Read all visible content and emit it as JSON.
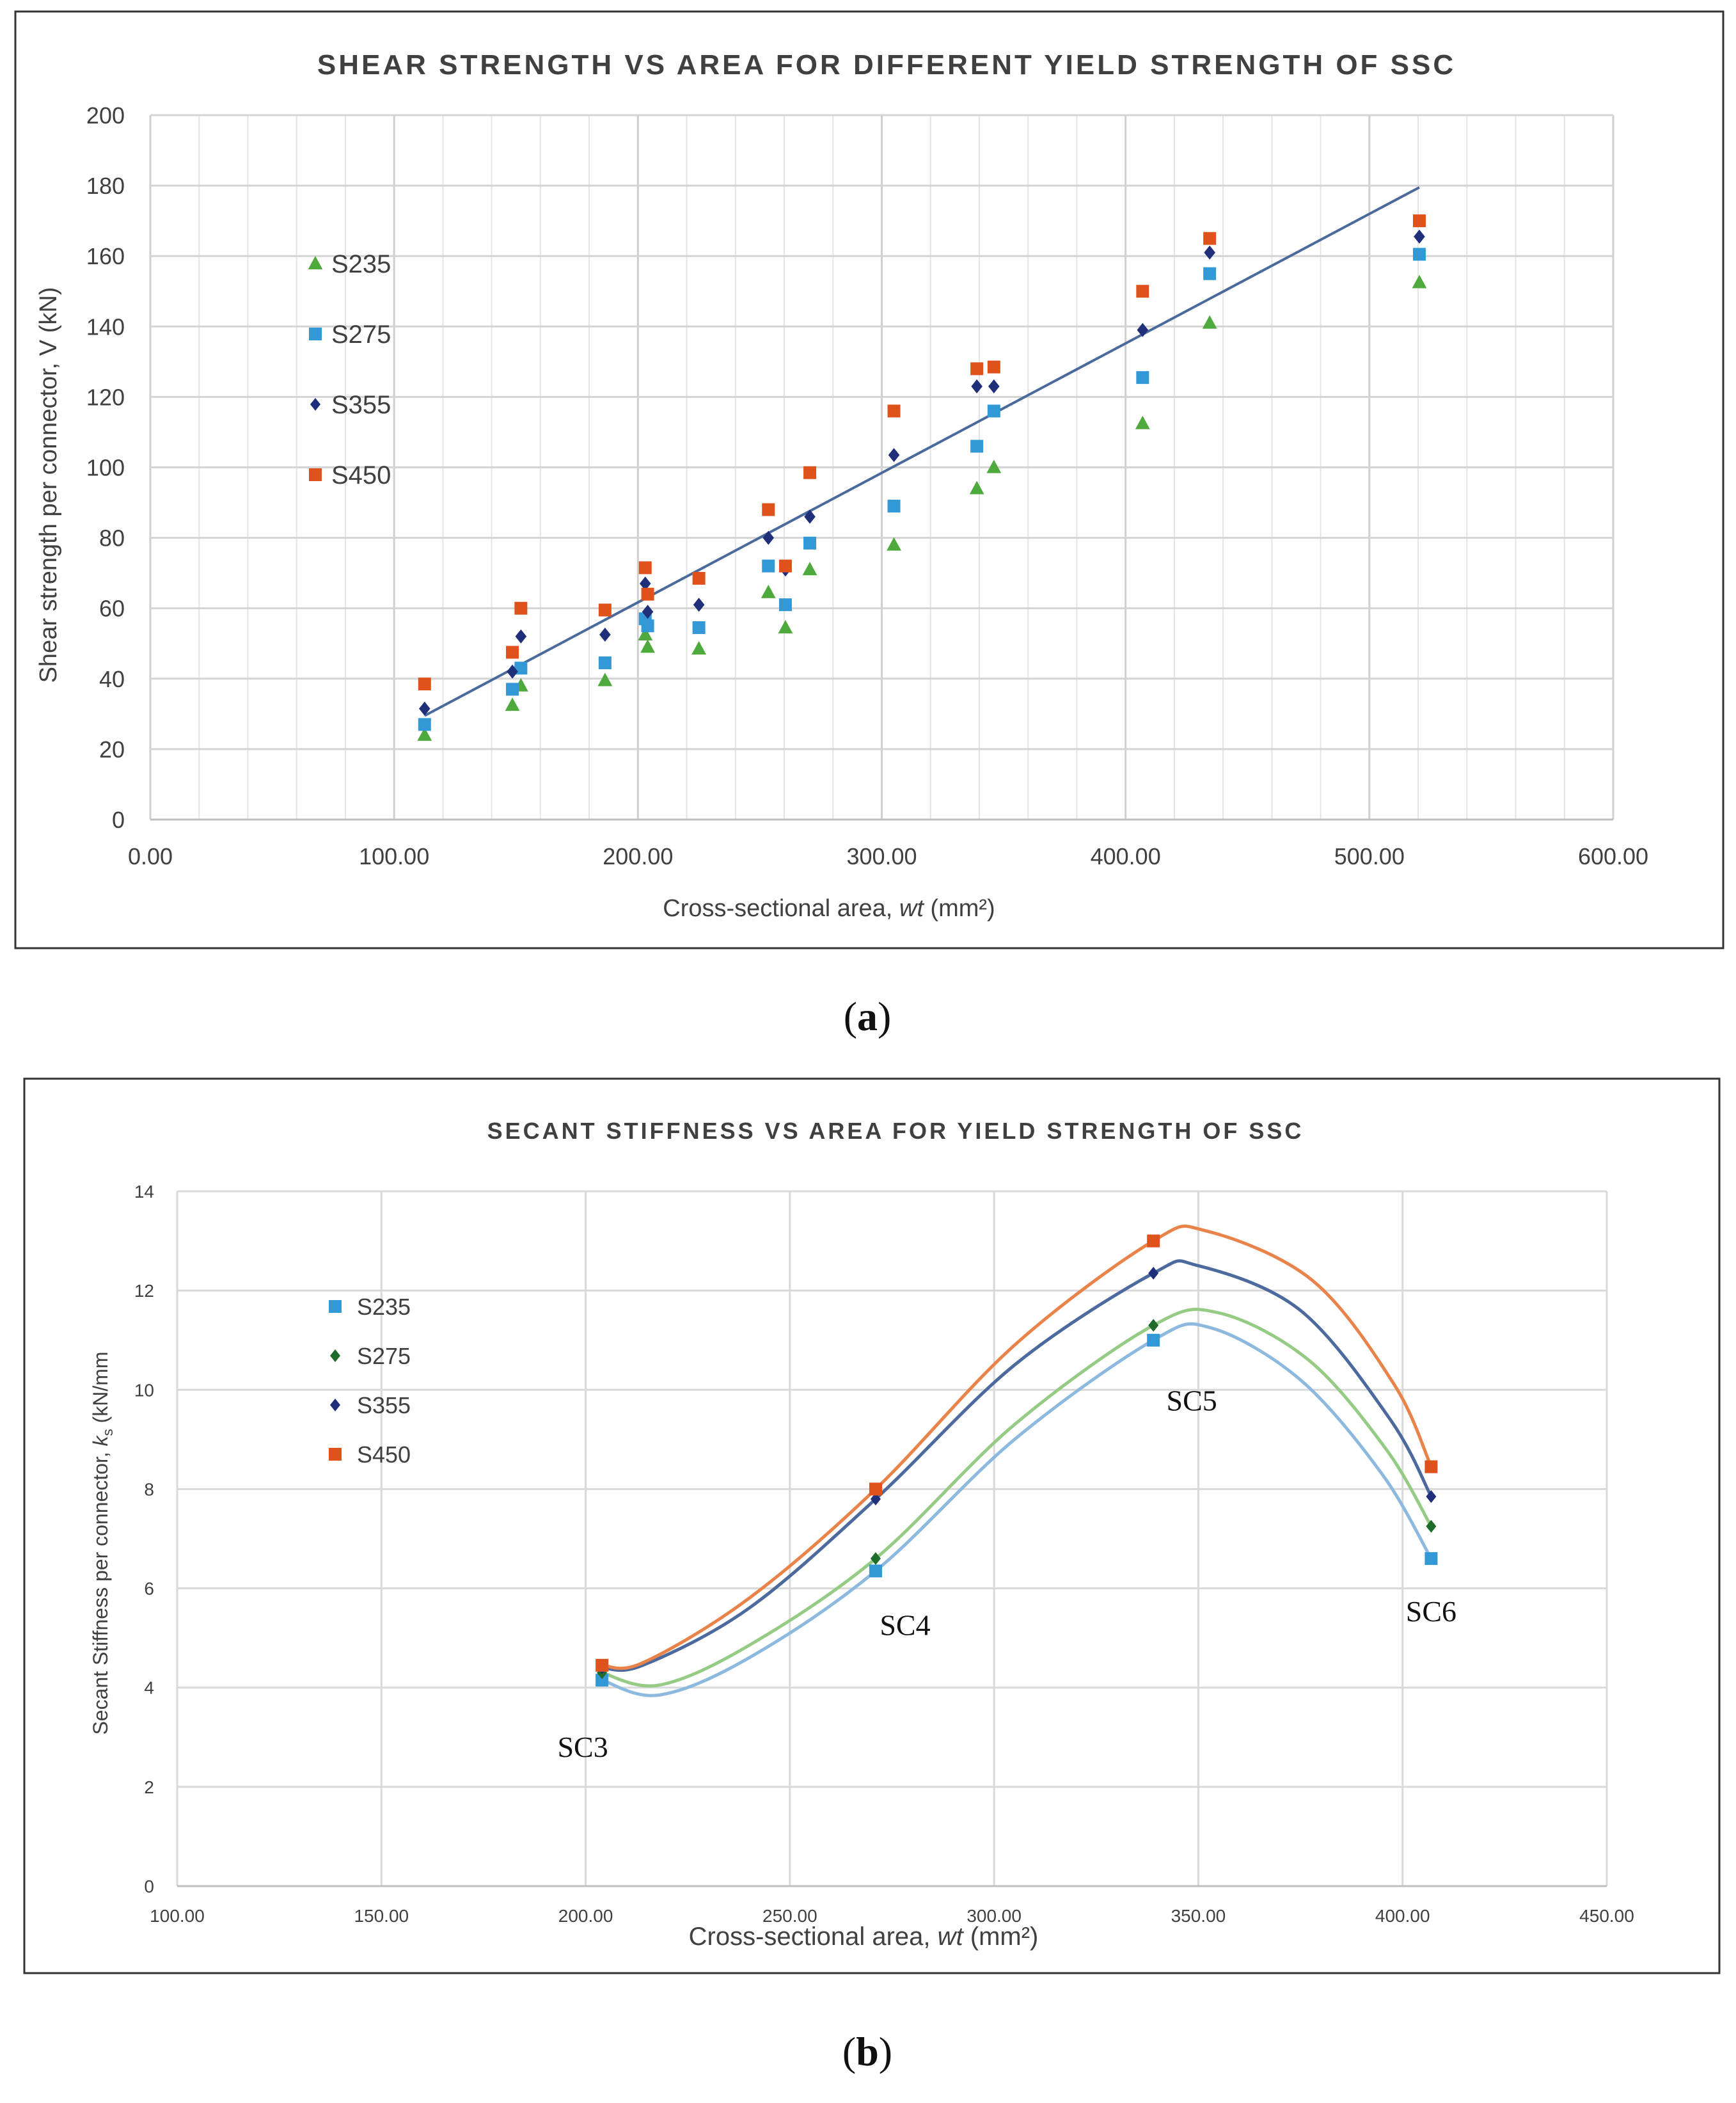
{
  "chart_data": [
    {
      "type": "scatter",
      "panel_label": "a",
      "title": "SHEAR STRENGTH VS AREA FOR DIFFERENT YIELD STRENGTH OF SSC",
      "xlabel": "Cross-sectional area, wt (mm²)",
      "xlabel_plain": "Cross-sectional area, ",
      "xlabel_italic": "wt",
      "xlabel_unit": " (mm²)",
      "ylabel": "Shear strength  per connector, V (kN)",
      "xlim": [
        0,
        600
      ],
      "ylim": [
        0,
        200
      ],
      "xticks": [
        "0.00",
        "100.00",
        "200.00",
        "300.00",
        "400.00",
        "500.00",
        "600.00"
      ],
      "yticks": [
        "0",
        "20",
        "40",
        "60",
        "80",
        "100",
        "120",
        "140",
        "160",
        "180",
        "200"
      ],
      "x_minor_step": 20,
      "y_grid_step": 20,
      "legend_position": "left",
      "series": [
        {
          "name": "S235",
          "marker": "triangle",
          "color": "#4EAA3C",
          "points": [
            [
              112.5,
              24
            ],
            [
              148.5,
              32.5
            ],
            [
              152,
              38
            ],
            [
              186.5,
              39.5
            ],
            [
              203,
              52.5
            ],
            [
              204,
              49
            ],
            [
              225,
              48.5
            ],
            [
              253.5,
              64.5
            ],
            [
              260.5,
              54.5
            ],
            [
              270.5,
              71
            ],
            [
              305,
              78
            ],
            [
              339,
              94
            ],
            [
              346,
              100
            ],
            [
              407,
              112.5
            ],
            [
              434.5,
              141
            ],
            [
              520.5,
              152.5
            ]
          ]
        },
        {
          "name": "S275",
          "marker": "square",
          "color": "#3399D6",
          "points": [
            [
              112.5,
              27
            ],
            [
              148.5,
              37
            ],
            [
              152,
              43
            ],
            [
              186.5,
              44.5
            ],
            [
              203,
              57
            ],
            [
              204,
              55
            ],
            [
              225,
              54.5
            ],
            [
              253.5,
              72
            ],
            [
              260.5,
              61
            ],
            [
              270.5,
              78.5
            ],
            [
              305,
              89
            ],
            [
              339,
              106
            ],
            [
              346,
              116
            ],
            [
              407,
              125.5
            ],
            [
              434.5,
              155
            ],
            [
              520.5,
              160.5
            ]
          ]
        },
        {
          "name": "S355",
          "marker": "diamond",
          "color": "#1F2F7A",
          "points": [
            [
              112.5,
              31.5
            ],
            [
              148.5,
              42
            ],
            [
              152,
              52
            ],
            [
              186.5,
              52.5
            ],
            [
              203,
              67
            ],
            [
              204,
              59
            ],
            [
              225,
              61
            ],
            [
              253.5,
              80
            ],
            [
              260.5,
              71
            ],
            [
              270.5,
              86
            ],
            [
              305,
              103.5
            ],
            [
              339,
              123
            ],
            [
              346,
              123
            ],
            [
              407,
              139
            ],
            [
              434.5,
              161
            ],
            [
              520.5,
              165.5
            ]
          ]
        },
        {
          "name": "S450",
          "marker": "square",
          "color": "#E0521C",
          "points": [
            [
              112.5,
              38.5
            ],
            [
              148.5,
              47.5
            ],
            [
              152,
              60
            ],
            [
              186.5,
              59.5
            ],
            [
              203,
              71.5
            ],
            [
              204,
              64
            ],
            [
              225,
              68.5
            ],
            [
              253.5,
              88
            ],
            [
              260.5,
              72
            ],
            [
              270.5,
              98.5
            ],
            [
              305,
              116
            ],
            [
              339,
              128
            ],
            [
              346,
              128.5
            ],
            [
              407,
              150
            ],
            [
              434.5,
              165
            ],
            [
              520.5,
              170
            ]
          ]
        }
      ],
      "trendline": {
        "type": "linear",
        "color": "#4A6A9C",
        "x": [
          112.5,
          520.5
        ],
        "y": [
          29.5,
          179.5
        ]
      }
    },
    {
      "type": "line",
      "panel_label": "b",
      "title": "SECANT STIFFNESS VS AREA FOR YIELD STRENGTH OF SSC",
      "xlabel": "Cross-sectional area, wt (mm²)",
      "xlabel_plain": "Cross-sectional area, ",
      "xlabel_italic": "wt",
      "xlabel_unit": " (mm²)",
      "ylabel": "Secant Stiffness per connector, ks (kN/mm",
      "ylabel_pre": "Secant Stiffness per connector, ",
      "ylabel_k": "k",
      "ylabel_sub": "s",
      "ylabel_post": " (kN/mm",
      "xlim": [
        100,
        450
      ],
      "ylim": [
        0,
        14
      ],
      "xticks": [
        "100.00",
        "150.00",
        "200.00",
        "250.00",
        "300.00",
        "350.00",
        "400.00",
        "450.00"
      ],
      "yticks": [
        "0",
        "2",
        "4",
        "6",
        "8",
        "10",
        "12",
        "14"
      ],
      "legend_position": "left",
      "x": [
        204,
        271,
        339,
        407
      ],
      "point_labels": [
        "SC3",
        "SC4",
        "SC5",
        "SC6"
      ],
      "series": [
        {
          "name": "S235",
          "marker": "square",
          "color": "#3399D6",
          "line_color": "#8DB9DF",
          "values": [
            4.15,
            6.35,
            11.0,
            6.6
          ],
          "curve": [
            [
              204,
              4.15
            ],
            [
              218,
              3.85
            ],
            [
              240,
              4.6
            ],
            [
              271,
              6.35
            ],
            [
              305,
              9.0
            ],
            [
              339,
              11.0
            ],
            [
              353,
              11.25
            ],
            [
              375,
              10.2
            ],
            [
              395,
              8.3
            ],
            [
              407,
              6.6
            ]
          ]
        },
        {
          "name": "S275",
          "marker": "diamond",
          "color": "#1E6B2A",
          "line_color": "#95CB84",
          "values": [
            4.3,
            6.6,
            11.3,
            7.25
          ],
          "curve": [
            [
              204,
              4.3
            ],
            [
              218,
              4.05
            ],
            [
              240,
              4.85
            ],
            [
              271,
              6.6
            ],
            [
              305,
              9.3
            ],
            [
              339,
              11.3
            ],
            [
              355,
              11.55
            ],
            [
              377,
              10.6
            ],
            [
              396,
              8.8
            ],
            [
              407,
              7.25
            ]
          ]
        },
        {
          "name": "S355",
          "marker": "diamond",
          "color": "#1F2F7A",
          "line_color": "#4C6A9E",
          "values": [
            4.4,
            7.8,
            12.35,
            7.85
          ],
          "curve": [
            [
              204,
              4.4
            ],
            [
              214,
              4.45
            ],
            [
              240,
              5.6
            ],
            [
              271,
              7.8
            ],
            [
              305,
              10.5
            ],
            [
              339,
              12.35
            ],
            [
              350,
              12.5
            ],
            [
              375,
              11.6
            ],
            [
              397,
              9.4
            ],
            [
              407,
              7.85
            ]
          ]
        },
        {
          "name": "S450",
          "marker": "square",
          "color": "#E0521C",
          "line_color": "#E8834A",
          "values": [
            4.45,
            8.0,
            13.0,
            8.45
          ],
          "curve": [
            [
              204,
              4.45
            ],
            [
              214,
              4.5
            ],
            [
              240,
              5.8
            ],
            [
              271,
              8.0
            ],
            [
              305,
              10.9
            ],
            [
              339,
              13.0
            ],
            [
              352,
              13.2
            ],
            [
              378,
              12.2
            ],
            [
              398,
              10.1
            ],
            [
              407,
              8.45
            ]
          ]
        }
      ]
    }
  ]
}
